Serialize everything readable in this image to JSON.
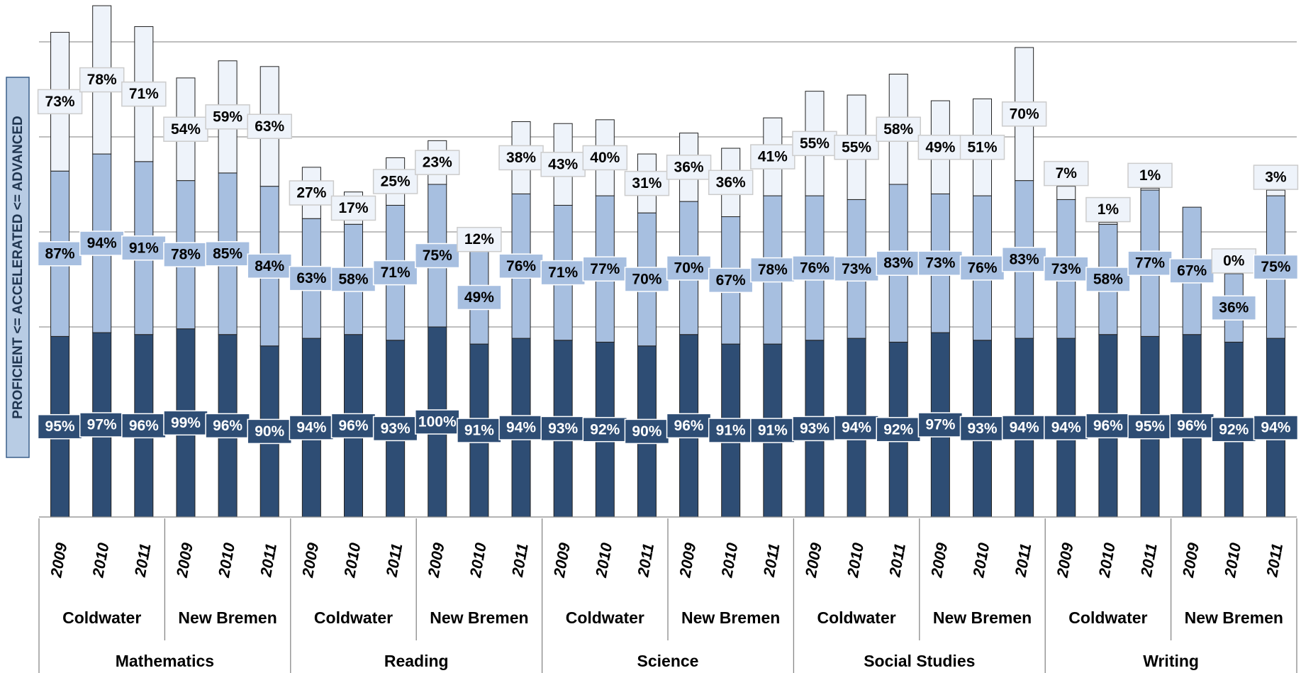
{
  "chart_data": {
    "type": "stacked-bar",
    "y_axis_label": "PROFICIENT <= ACCELERATED <= ADVANCED",
    "categories": [
      "2009",
      "2010",
      "2011",
      "2009",
      "2010",
      "2011",
      "2009",
      "2010",
      "2011",
      "2009",
      "2010",
      "2011",
      "2009",
      "2010",
      "2011",
      "2009",
      "2010",
      "2011",
      "2009",
      "2010",
      "2011",
      "2009",
      "2010",
      "2011",
      "2009",
      "2010",
      "2011",
      "2009",
      "2010",
      "2011"
    ],
    "school_labels": [
      "Coldwater",
      "New Bremen",
      "Coldwater",
      "New Bremen",
      "Coldwater",
      "New Bremen",
      "Coldwater",
      "New Bremen",
      "Coldwater",
      "New Bremen"
    ],
    "subject_labels": [
      "Mathematics",
      "Reading",
      "Science",
      "Social Studies",
      "Writing"
    ],
    "series": [
      {
        "color": "#2e4d74",
        "label_color": "#ffffff",
        "values": [
          95,
          97,
          96,
          99,
          96,
          90,
          94,
          96,
          93,
          100,
          91,
          94,
          93,
          92,
          90,
          96,
          91,
          91,
          93,
          94,
          92,
          97,
          93,
          94,
          94,
          96,
          95,
          96,
          92,
          94
        ],
        "value_labels": [
          "95%",
          "97%",
          "96%",
          "99%",
          "96%",
          "90%",
          "94%",
          "96%",
          "93%",
          "100%",
          "91%",
          "94%",
          "93%",
          "92%",
          "90%",
          "96%",
          "91%",
          "91%",
          "93%",
          "94%",
          "92%",
          "97%",
          "93%",
          "94%",
          "94%",
          "96%",
          "95%",
          "96%",
          "92%",
          "94%"
        ]
      },
      {
        "color": "#a7bfe0",
        "label_color": "#000000",
        "values": [
          87,
          94,
          91,
          78,
          85,
          84,
          63,
          58,
          71,
          75,
          49,
          76,
          71,
          77,
          70,
          70,
          67,
          78,
          76,
          73,
          83,
          73,
          76,
          83,
          73,
          58,
          77,
          67,
          36,
          75
        ],
        "value_labels": [
          "87%",
          "94%",
          "91%",
          "78%",
          "85%",
          "84%",
          "63%",
          "58%",
          "71%",
          "75%",
          "49%",
          "76%",
          "71%",
          "77%",
          "70%",
          "70%",
          "67%",
          "78%",
          "76%",
          "73%",
          "83%",
          "73%",
          "76%",
          "83%",
          "73%",
          "58%",
          "77%",
          "67%",
          "36%",
          "75%"
        ]
      },
      {
        "color": "#eef3fa",
        "label_color": "#000000",
        "values": [
          73,
          78,
          71,
          54,
          59,
          63,
          27,
          17,
          25,
          23,
          12,
          38,
          43,
          40,
          31,
          36,
          36,
          41,
          55,
          55,
          58,
          49,
          51,
          70,
          7,
          1,
          1,
          null,
          0,
          3
        ],
        "value_labels": [
          "73%",
          "78%",
          "71%",
          "54%",
          "59%",
          "63%",
          "27%",
          "17%",
          "25%",
          "23%",
          "12%",
          "38%",
          "43%",
          "40%",
          "31%",
          "36%",
          "36%",
          "41%",
          "55%",
          "55%",
          "58%",
          "49%",
          "51%",
          "70%",
          "7%",
          "1%",
          "1%",
          null,
          "0%",
          "3%"
        ]
      }
    ],
    "ylim": [
      0,
      272
    ],
    "gridlines": [
      50,
      100,
      150,
      200,
      250
    ]
  }
}
